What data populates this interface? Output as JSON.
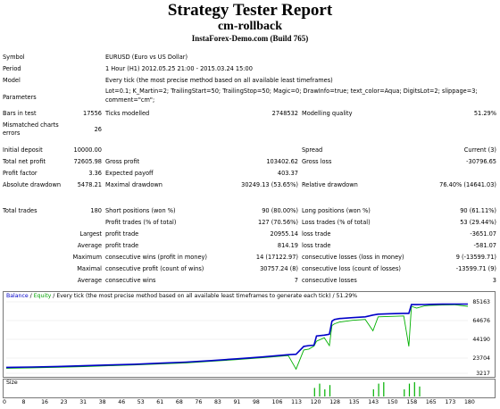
{
  "header": {
    "title": "Strategy Tester Report",
    "expert": "cm-rollback",
    "server": "InstaForex-Demo.com (Build 765)"
  },
  "info": [
    {
      "label": "Symbol",
      "value": "EURUSD (Euro vs US Dollar)"
    },
    {
      "label": "Period",
      "value": "1 Hour (H1) 2012.05.25 21:00 - 2015.03.24 15:00"
    },
    {
      "label": "Model",
      "value": "Every tick (the most precise method based on all available least timeframes)"
    },
    {
      "label": "Parameters",
      "value": "Lot=0.1; K_Martin=2; TrailingStart=50; TrailingStop=50; Magic=0; DrawInfo=true; text_color=Aqua; DigitsLot=2; slippage=3;",
      "value2": "comment=\"cm\";"
    }
  ],
  "bars": {
    "l1": "Bars in test",
    "v1": "17556",
    "l2": "Ticks modelled",
    "v2": "2748532",
    "l3": "Modelling quality",
    "v3": "51.29%"
  },
  "mismatch": {
    "label1": "Mismatched charts",
    "label2": "errors",
    "value": "26"
  },
  "r1": {
    "l1": "Initial deposit",
    "v1": "10000.00",
    "l3": "Spread",
    "v3": "Current (3)"
  },
  "r2": {
    "l1": "Total net profit",
    "v1": "72605.98",
    "l2": "Gross profit",
    "v2": "103402.62",
    "l3": "Gross loss",
    "v3": "-30796.65"
  },
  "r3": {
    "l1": "Profit factor",
    "v1": "3.36",
    "l2": "Expected payoff",
    "v2": "403.37"
  },
  "r4": {
    "l1": "Absolute drawdown",
    "v1": "5478.21",
    "l2": "Maximal drawdown",
    "v2": "30249.13 (53.65%)",
    "l3": "Relative drawdown",
    "v3": "76.40% (14641.03)"
  },
  "r5": {
    "l1": "Total trades",
    "v1": "180",
    "l2": "Short positions (won %)",
    "v2": "90 (80.00%)",
    "l3": "Long positions (won %)",
    "v3": "90 (61.11%)"
  },
  "r6": {
    "l2": "Profit trades (% of total)",
    "v2": "127 (70.56%)",
    "l3": "Loss trades (% of total)",
    "v3": "53 (29.44%)"
  },
  "r7": {
    "pre": "Largest",
    "l2": "profit trade",
    "v2": "20955.14",
    "l3": "loss trade",
    "v3": "-3651.07"
  },
  "r8": {
    "pre": "Average",
    "l2": "profit trade",
    "v2": "814.19",
    "l3": "loss trade",
    "v3": "-581.07"
  },
  "r9": {
    "pre": "Maximum",
    "l2": "consecutive wins (profit in money)",
    "v2": "14 (17122.97)",
    "l3": "consecutive losses (loss in money)",
    "v3": "9 (-13599.71)"
  },
  "r10": {
    "pre": "Maximal",
    "l2": "consecutive profit (count of wins)",
    "v2": "30757.24 (8)",
    "l3": "consecutive loss (count of losses)",
    "v3": "-13599.71 (9)"
  },
  "r11": {
    "pre": "Average",
    "l2": "consecutive wins",
    "v2": "7",
    "l3": "consecutive losses",
    "v3": "3"
  },
  "chart": {
    "legend_balance": "Balance",
    "legend_sep": " / ",
    "legend_equity": "Equity",
    "legend_rest": " / Every tick (the most precise method based on all available least timeframes to generate each tick) / 51.29%",
    "yticks": [
      "85163",
      "64676",
      "44190",
      "23704",
      "3217"
    ],
    "size_label": "Size",
    "xticks": [
      "0",
      "8",
      "16",
      "23",
      "31",
      "38",
      "46",
      "53",
      "61",
      "68",
      "76",
      "83",
      "91",
      "98",
      "106",
      "113",
      "120",
      "128",
      "135",
      "143",
      "150",
      "158",
      "165",
      "173",
      "180"
    ],
    "balance_color": "#0000c8",
    "equity_color": "#00b000"
  },
  "chart_data": {
    "type": "line",
    "x": [
      0,
      10,
      20,
      30,
      40,
      50,
      60,
      70,
      80,
      90,
      100,
      110,
      113,
      116,
      118,
      120,
      121,
      124,
      126,
      127,
      128,
      130,
      135,
      140,
      143,
      145,
      150,
      155,
      157,
      158,
      160,
      163,
      165,
      170,
      175,
      180
    ],
    "series": [
      {
        "name": "Balance",
        "values": [
          10000,
          10400,
          11000,
          11800,
          12700,
          13600,
          14800,
          16000,
          17800,
          19800,
          22000,
          24500,
          25000,
          34000,
          35000,
          35500,
          46000,
          47000,
          48000,
          63000,
          65000,
          66000,
          67000,
          68000,
          70000,
          71000,
          71500,
          72000,
          72000,
          82000,
          82000,
          82100,
          82300,
          82500,
          82600,
          82606
        ]
      },
      {
        "name": "Equity",
        "values": [
          9000,
          9500,
          10100,
          10900,
          11800,
          12700,
          13900,
          15100,
          16900,
          18900,
          21000,
          23500,
          8000,
          30000,
          31000,
          34500,
          40000,
          44000,
          35000,
          58000,
          60000,
          62000,
          64000,
          65000,
          52000,
          68000,
          68500,
          69000,
          34000,
          80000,
          78000,
          80500,
          81000,
          81500,
          81800,
          80000
        ]
      }
    ],
    "size_bars": [
      {
        "x": 120,
        "v": 0.6
      },
      {
        "x": 122,
        "v": 0.9
      },
      {
        "x": 124,
        "v": 0.5
      },
      {
        "x": 126,
        "v": 0.8
      },
      {
        "x": 143,
        "v": 0.5
      },
      {
        "x": 145,
        "v": 0.9
      },
      {
        "x": 147,
        "v": 1.0
      },
      {
        "x": 155,
        "v": 0.5
      },
      {
        "x": 157,
        "v": 0.9
      },
      {
        "x": 159,
        "v": 1.0
      },
      {
        "x": 161,
        "v": 0.7
      }
    ],
    "ylim": [
      3217,
      85163
    ],
    "xlim": [
      0,
      180
    ]
  }
}
